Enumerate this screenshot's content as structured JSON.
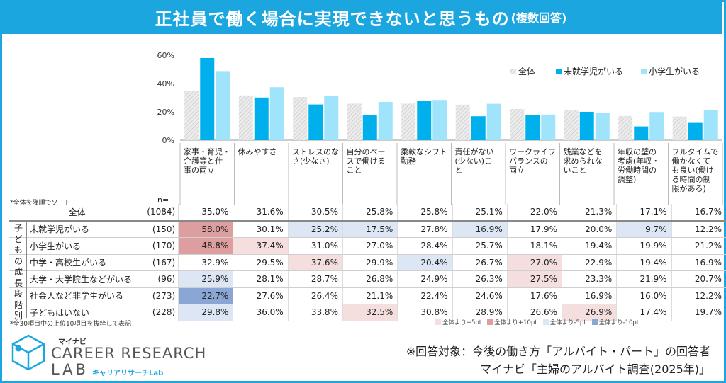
{
  "title": "正社員で働く場合に実現できないと思うもの",
  "title_suffix": "(複数回答)",
  "sort_note": "*全体を降順でソート",
  "n_header": "n=",
  "footnote": "*全30項目中の上位10項目を抜粋して表記",
  "group_label": "子どもの成長段階別",
  "colors": {
    "header": "#1ca6e0",
    "all": "#e2e2e2",
    "mishugaku": "#00b0ec",
    "shogakusei": "#9fe4fb",
    "plus5": "#f4dede",
    "plus10": "#dc9e9e",
    "minus5": "#dce6f4",
    "minus10": "#8aa6d4"
  },
  "chart_data": {
    "type": "bar",
    "y_ticks": [
      "0%",
      "20%",
      "40%",
      "60%"
    ],
    "ylim": [
      0,
      60
    ],
    "categories": [
      "家事・育児・介護等と仕事の両立",
      "休みやすさ",
      "ストレスのなさ(少なさ)",
      "自分のペースで働けること",
      "柔軟なシフト勤務",
      "責任がない(少ない)こと",
      "ワークライフバランスの両立",
      "残業などを求められないこと",
      "年収の壁の考慮(年収・労働時間の調整)",
      "フルタイムで働かなくても良い(働ける時間の制限がある)"
    ],
    "category_lines": [
      [
        "家事・育児・",
        "介護等と仕",
        "事の両立"
      ],
      [
        "休みやすさ"
      ],
      [
        "ストレスのな",
        "さ(少なさ)"
      ],
      [
        "自分のペー",
        "スで働ける",
        "こと"
      ],
      [
        "柔軟なシフト",
        "勤務"
      ],
      [
        "責任がない",
        "(少ない)こ",
        "と"
      ],
      [
        "ワークライフ",
        "バランスの",
        "両立"
      ],
      [
        "残業などを",
        "求められな",
        "いこと"
      ],
      [
        "年収の壁の",
        "考慮(年収・",
        "労働時間の",
        "調整)"
      ],
      [
        "フルタイムで",
        "働かなくて",
        "も良い(働け",
        "る時間の制",
        "限がある)"
      ]
    ],
    "series": [
      {
        "name": "全体",
        "values": [
          35.0,
          31.6,
          30.5,
          25.8,
          25.8,
          25.1,
          22.0,
          21.3,
          17.1,
          16.7
        ]
      },
      {
        "name": "未就学児がいる",
        "values": [
          58.0,
          30.1,
          25.2,
          17.5,
          27.8,
          16.9,
          17.9,
          20.0,
          9.7,
          12.2
        ]
      },
      {
        "name": "小学生がいる",
        "values": [
          48.8,
          37.4,
          31.0,
          27.0,
          28.4,
          25.7,
          18.1,
          19.4,
          19.9,
          21.2
        ]
      }
    ],
    "legend_position": "top-right"
  },
  "table": {
    "total": {
      "label": "全体",
      "n": "(1084)",
      "values": [
        "35.0%",
        "31.6%",
        "30.5%",
        "25.8%",
        "25.8%",
        "25.1%",
        "22.0%",
        "21.3%",
        "17.1%",
        "16.7%"
      ]
    },
    "rows": [
      {
        "label": "未就学児がいる",
        "n": "(150)",
        "values": [
          "58.0%",
          "30.1%",
          "25.2%",
          "17.5%",
          "27.8%",
          "16.9%",
          "17.9%",
          "20.0%",
          "9.7%",
          "12.2%"
        ],
        "shade": [
          "p10",
          "",
          "m5",
          "m5",
          "",
          "m5",
          "",
          "",
          "m5",
          ""
        ]
      },
      {
        "label": "小学生がいる",
        "n": "(170)",
        "values": [
          "48.8%",
          "37.4%",
          "31.0%",
          "27.0%",
          "28.4%",
          "25.7%",
          "18.1%",
          "19.4%",
          "19.9%",
          "21.2%"
        ],
        "shade": [
          "p10",
          "p5",
          "",
          "",
          "",
          "",
          "",
          "",
          "",
          ""
        ]
      },
      {
        "label": "中学・高校生がいる",
        "n": "(167)",
        "values": [
          "32.9%",
          "29.5%",
          "37.6%",
          "29.9%",
          "20.4%",
          "26.7%",
          "27.0%",
          "22.9%",
          "19.4%",
          "16.9%"
        ],
        "shade": [
          "",
          "",
          "p5",
          "",
          "m5",
          "",
          "p5",
          "",
          "",
          ""
        ]
      },
      {
        "label": "大学・大学院生などがいる",
        "n": "(96)",
        "values": [
          "25.9%",
          "28.1%",
          "28.7%",
          "26.8%",
          "24.9%",
          "26.3%",
          "27.5%",
          "23.3%",
          "21.9%",
          "20.7%"
        ],
        "shade": [
          "m5",
          "",
          "",
          "",
          "",
          "",
          "p5",
          "",
          "",
          ""
        ]
      },
      {
        "label": "社会人など非学生がいる",
        "n": "(273)",
        "values": [
          "22.7%",
          "27.6%",
          "26.4%",
          "21.1%",
          "22.4%",
          "24.6%",
          "17.6%",
          "16.9%",
          "16.0%",
          "12.2%"
        ],
        "shade": [
          "m10",
          "",
          "",
          "",
          "",
          "",
          "",
          "",
          "",
          ""
        ]
      },
      {
        "label": "子どもはいない",
        "n": "(228)",
        "values": [
          "29.8%",
          "36.0%",
          "33.8%",
          "32.5%",
          "30.8%",
          "28.9%",
          "26.6%",
          "26.9%",
          "17.4%",
          "19.7%"
        ],
        "shade": [
          "m5",
          "",
          "",
          "p5",
          "",
          "",
          "",
          "p5",
          "",
          ""
        ]
      }
    ]
  },
  "shade_legend": [
    {
      "key": "p5",
      "label": "全体より+5pt"
    },
    {
      "key": "p10",
      "label": "全体より+10pt"
    },
    {
      "key": "m5",
      "label": "全体より-5pt"
    },
    {
      "key": "m10",
      "label": "全体より-10pt"
    }
  ],
  "brand": {
    "top": "マイナビ",
    "main": "CAREER RESEARCH",
    "lab": "LAB",
    "kana": "キャリアリサーチLab"
  },
  "source_lines": [
    "※回答対象：今後の働き方「アルバイト・パート」の回答者",
    "マイナビ「主婦のアルバイト調査(2025年)」"
  ]
}
